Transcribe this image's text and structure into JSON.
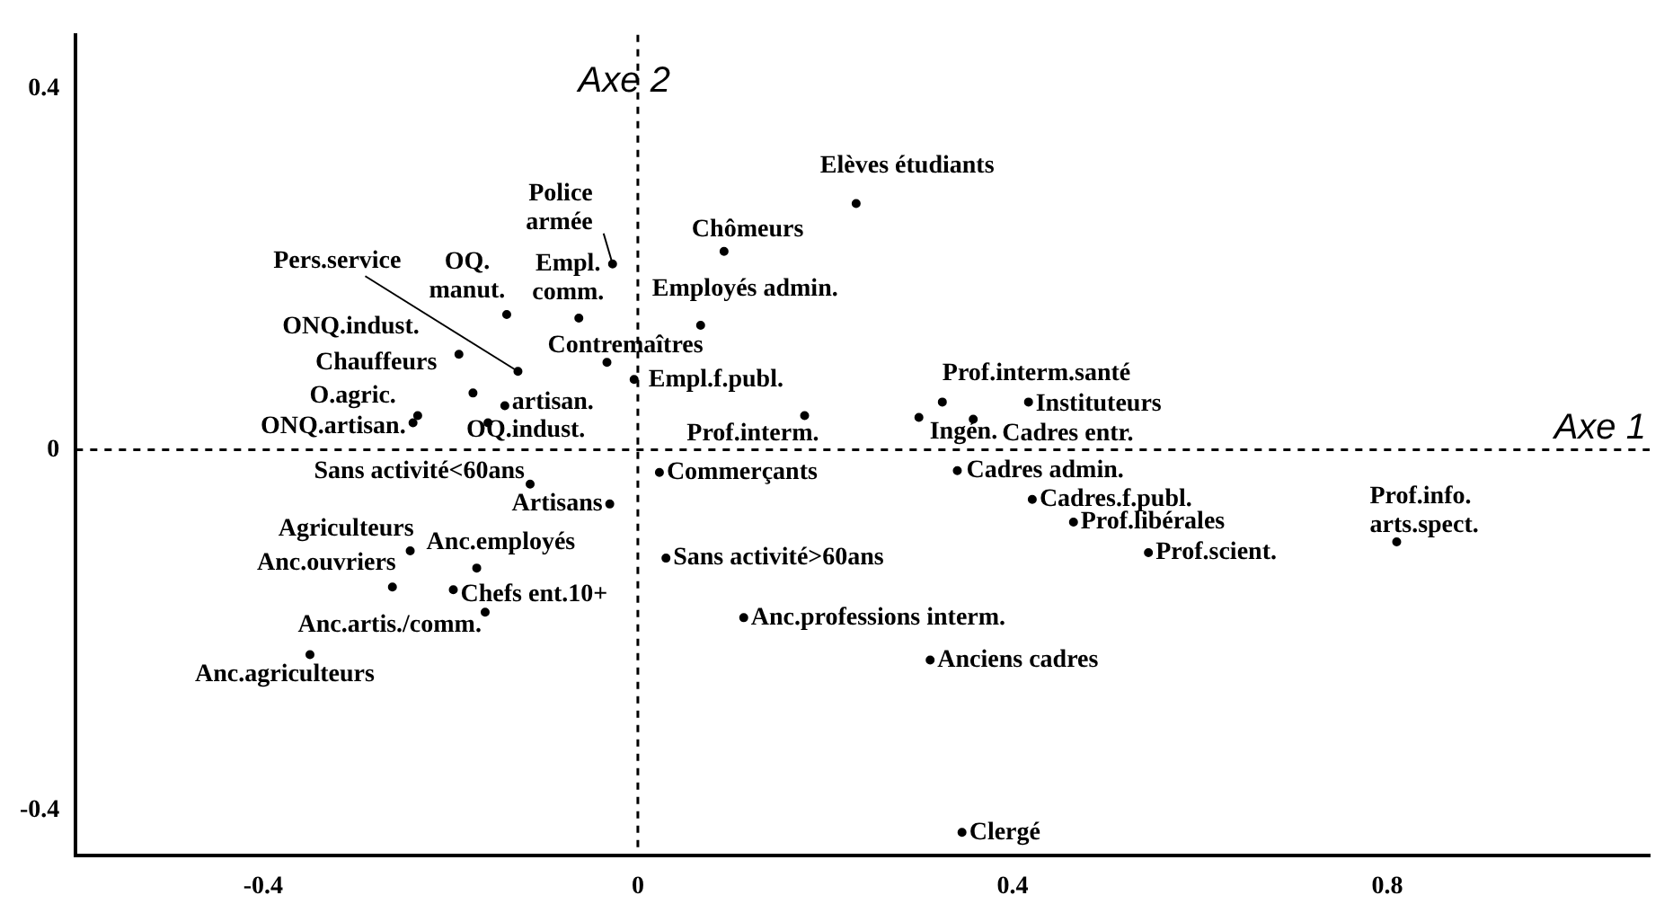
{
  "chart_data": {
    "type": "scatter",
    "xlim": [
      -0.6,
      1.08
    ],
    "ylim": [
      -0.45,
      0.46
    ],
    "xticks": [
      -0.4,
      0,
      0.4,
      0.8
    ],
    "yticks": [
      -0.4,
      0,
      0.4
    ],
    "grid": false,
    "legend": false,
    "marker": "circle",
    "series": [
      {
        "color": "#000000",
        "x": [
          0.233,
          0.092,
          -0.027,
          -0.063,
          -0.14,
          -0.128,
          -0.191,
          -0.176,
          -0.235,
          -0.24,
          -0.142,
          -0.16,
          -0.033,
          0.067,
          -0.004,
          0.178,
          0.3,
          0.325,
          0.417,
          0.358,
          0.341,
          0.421,
          0.465,
          0.545,
          0.023,
          0.03,
          0.113,
          0.312,
          0.346,
          0.81,
          -0.115,
          -0.03,
          -0.243,
          -0.172,
          -0.262,
          -0.197,
          -0.163,
          -0.35
        ],
        "values": [
          0.273,
          0.22,
          0.206,
          0.146,
          0.15,
          0.087,
          0.106,
          0.063,
          0.038,
          0.03,
          0.049,
          0.03,
          0.097,
          0.138,
          0.078,
          0.038,
          0.036,
          0.053,
          0.053,
          0.034,
          -0.023,
          -0.055,
          -0.08,
          -0.114,
          -0.025,
          -0.12,
          -0.186,
          -0.233,
          -0.424,
          -0.102,
          -0.038,
          -0.06,
          -0.112,
          -0.131,
          -0.152,
          -0.155,
          -0.18,
          -0.227
        ]
      }
    ],
    "annotations": [
      {
        "text": "Elèves étudiants",
        "x": 0.233,
        "y": 0.273
      },
      {
        "text": "Chômeurs",
        "x": 0.092,
        "y": 0.22
      },
      {
        "text": "Police\narmée",
        "x": -0.027,
        "y": 0.206
      },
      {
        "text": "Empl.\ncomm.",
        "x": -0.063,
        "y": 0.146
      },
      {
        "text": "OQ.\nmanut.",
        "x": -0.14,
        "y": 0.15
      },
      {
        "text": "Pers.service",
        "x": -0.128,
        "y": 0.087
      },
      {
        "text": "ONQ.indust.",
        "x": -0.191,
        "y": 0.106
      },
      {
        "text": "Chauffeurs",
        "x": -0.176,
        "y": 0.063
      },
      {
        "text": "O.agric.",
        "x": -0.235,
        "y": 0.038
      },
      {
        "text": "ONQ.artisan.",
        "x": -0.24,
        "y": 0.03
      },
      {
        "text": "artisan.",
        "x": -0.142,
        "y": 0.049
      },
      {
        "text": "OQ.indust.",
        "x": -0.16,
        "y": 0.03
      },
      {
        "text": "Contremaîtres",
        "x": -0.033,
        "y": 0.097
      },
      {
        "text": "Employés admin.",
        "x": 0.067,
        "y": 0.138
      },
      {
        "text": "Empl.f.publ.",
        "x": -0.004,
        "y": 0.078
      },
      {
        "text": "Prof.interm.",
        "x": 0.178,
        "y": 0.038
      },
      {
        "text": "Ingén.",
        "x": 0.3,
        "y": 0.036
      },
      {
        "text": "Prof.interm.santé",
        "x": 0.325,
        "y": 0.053
      },
      {
        "text": "Instituteurs",
        "x": 0.417,
        "y": 0.053
      },
      {
        "text": "Cadres entr.",
        "x": 0.358,
        "y": 0.034
      },
      {
        "text": "Cadres admin.",
        "x": 0.341,
        "y": -0.023
      },
      {
        "text": "Cadres.f.publ.",
        "x": 0.421,
        "y": -0.055
      },
      {
        "text": "Prof.libérales",
        "x": 0.465,
        "y": -0.08
      },
      {
        "text": "Prof.scient.",
        "x": 0.545,
        "y": -0.114
      },
      {
        "text": "Commerçants",
        "x": 0.023,
        "y": -0.025
      },
      {
        "text": "Sans activité>60ans",
        "x": 0.03,
        "y": -0.12
      },
      {
        "text": "Anc.professions interm.",
        "x": 0.113,
        "y": -0.186
      },
      {
        "text": "Anciens cadres",
        "x": 0.312,
        "y": -0.233
      },
      {
        "text": "Clergé",
        "x": 0.346,
        "y": -0.424
      },
      {
        "text": "Prof.info.\narts.spect.",
        "x": 0.81,
        "y": -0.102
      },
      {
        "text": "Sans activité<60ans",
        "x": -0.115,
        "y": -0.038
      },
      {
        "text": "Artisans",
        "x": -0.03,
        "y": -0.06
      },
      {
        "text": "Agriculteurs",
        "x": -0.243,
        "y": -0.112
      },
      {
        "text": "Anc.employés",
        "x": -0.172,
        "y": -0.131
      },
      {
        "text": "Anc.ouvriers",
        "x": -0.262,
        "y": -0.152
      },
      {
        "text": "Chefs ent.10+",
        "x": -0.197,
        "y": -0.155
      },
      {
        "text": "Anc.artis./comm.",
        "x": -0.163,
        "y": -0.18
      },
      {
        "text": "Anc.agriculteurs",
        "x": -0.35,
        "y": -0.227
      }
    ],
    "ref_lines": [
      {
        "axis": "y",
        "value": 0,
        "label": "Axe 1",
        "line_style": "dashed"
      },
      {
        "axis": "x",
        "value": 0,
        "label": "Axe 2",
        "line_style": "dashed"
      }
    ]
  }
}
